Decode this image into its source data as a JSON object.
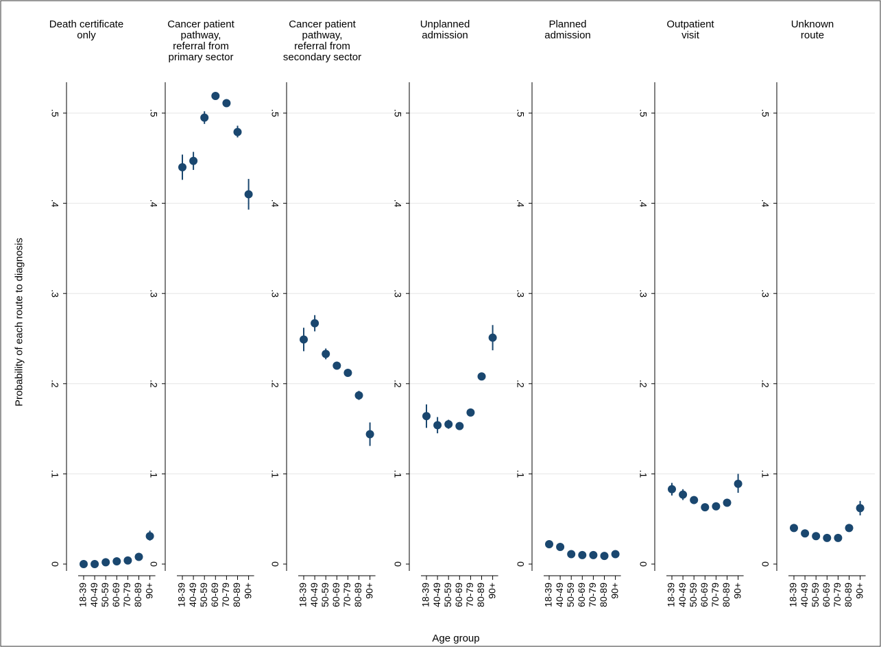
{
  "chart_data": {
    "type": "scatter",
    "xlabel": "Age group",
    "ylabel": "Probability of each route to diagnosis",
    "ylim": [
      0,
      0.5
    ],
    "yticks": [
      0,
      0.1,
      0.2,
      0.3,
      0.4,
      0.5
    ],
    "ytick_labels": [
      "0",
      ".1",
      ".2",
      ".3",
      ".4",
      ".5"
    ],
    "categories": [
      "18-39",
      "40-49",
      "50-59",
      "60-69",
      "70-79",
      "80-89",
      "90+"
    ],
    "grid": true,
    "marker_color": "#1a476f",
    "panels": [
      {
        "title": [
          "Death certificate",
          "only"
        ],
        "values": [
          0.0,
          0.0,
          0.002,
          0.003,
          0.004,
          0.008,
          0.031
        ],
        "ci": [
          [
            0.0,
            0.001
          ],
          [
            0.0,
            0.001
          ],
          [
            0.001,
            0.003
          ],
          [
            0.002,
            0.004
          ],
          [
            0.003,
            0.005
          ],
          [
            0.006,
            0.01
          ],
          [
            0.026,
            0.037
          ]
        ]
      },
      {
        "title": [
          "Cancer patient",
          "pathway,",
          "referral from",
          "primary sector"
        ],
        "values": [
          0.44,
          0.447,
          0.495,
          0.519,
          0.511,
          0.479,
          0.41
        ],
        "ci": [
          [
            0.426,
            0.454
          ],
          [
            0.437,
            0.457
          ],
          [
            0.488,
            0.502
          ],
          [
            0.515,
            0.523
          ],
          [
            0.507,
            0.515
          ],
          [
            0.473,
            0.486
          ],
          [
            0.393,
            0.427
          ]
        ]
      },
      {
        "title": [
          "Cancer patient",
          "pathway,",
          "referral from",
          "secondary sector"
        ],
        "values": [
          0.249,
          0.267,
          0.233,
          0.22,
          0.212,
          0.187,
          0.144
        ],
        "ci": [
          [
            0.236,
            0.262
          ],
          [
            0.258,
            0.276
          ],
          [
            0.227,
            0.239
          ],
          [
            0.216,
            0.224
          ],
          [
            0.208,
            0.216
          ],
          [
            0.182,
            0.192
          ],
          [
            0.131,
            0.157
          ]
        ]
      },
      {
        "title": [
          "Unplanned",
          "admission"
        ],
        "values": [
          0.164,
          0.154,
          0.155,
          0.153,
          0.168,
          0.208,
          0.251
        ],
        "ci": [
          [
            0.151,
            0.177
          ],
          [
            0.145,
            0.163
          ],
          [
            0.15,
            0.16
          ],
          [
            0.15,
            0.156
          ],
          [
            0.165,
            0.171
          ],
          [
            0.204,
            0.212
          ],
          [
            0.237,
            0.265
          ]
        ]
      },
      {
        "title": [
          "Planned",
          "admission"
        ],
        "values": [
          0.022,
          0.019,
          0.011,
          0.01,
          0.01,
          0.009,
          0.011
        ],
        "ci": [
          [
            0.018,
            0.026
          ],
          [
            0.016,
            0.022
          ],
          [
            0.009,
            0.013
          ],
          [
            0.009,
            0.011
          ],
          [
            0.009,
            0.011
          ],
          [
            0.008,
            0.01
          ],
          [
            0.008,
            0.014
          ]
        ]
      },
      {
        "title": [
          "Outpatient",
          "visit"
        ],
        "values": [
          0.083,
          0.077,
          0.071,
          0.063,
          0.064,
          0.068,
          0.089
        ],
        "ci": [
          [
            0.076,
            0.09
          ],
          [
            0.071,
            0.083
          ],
          [
            0.068,
            0.074
          ],
          [
            0.061,
            0.065
          ],
          [
            0.062,
            0.066
          ],
          [
            0.065,
            0.071
          ],
          [
            0.079,
            0.1
          ]
        ]
      },
      {
        "title": [
          "Unknown",
          "route"
        ],
        "values": [
          0.04,
          0.034,
          0.031,
          0.029,
          0.029,
          0.04,
          0.062
        ],
        "ci": [
          [
            0.036,
            0.044
          ],
          [
            0.031,
            0.037
          ],
          [
            0.029,
            0.033
          ],
          [
            0.027,
            0.031
          ],
          [
            0.027,
            0.031
          ],
          [
            0.037,
            0.043
          ],
          [
            0.054,
            0.07
          ]
        ]
      }
    ]
  }
}
